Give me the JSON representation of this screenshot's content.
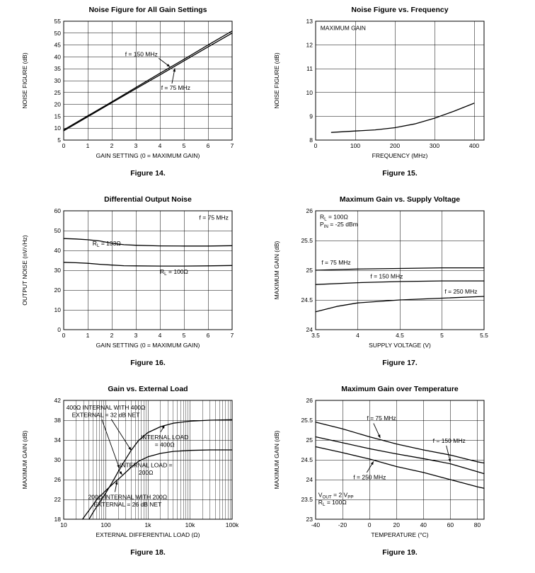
{
  "colors": {
    "ink": "#000000",
    "background": "#ffffff"
  },
  "chart_data": [
    {
      "type": "line",
      "title": "Noise Figure for All Gain Settings",
      "caption": "Figure 14.",
      "xlabel": "GAIN SETTING (0 = MAXIMUM GAIN)",
      "ylabel": "NOISE FIGURE (dB)",
      "xscale": "linear",
      "xlim": [
        0,
        7
      ],
      "ylim": [
        5,
        55
      ],
      "grid": true,
      "legend": "none",
      "xticks": {
        "values": [
          0,
          1,
          2,
          3,
          4,
          5,
          6,
          7
        ],
        "labels": [
          "0",
          "1",
          "2",
          "3",
          "4",
          "5",
          "6",
          "7"
        ]
      },
      "yticks": {
        "values": [
          5,
          10,
          15,
          20,
          25,
          30,
          35,
          40,
          45,
          50,
          55
        ],
        "labels": [
          "5",
          "10",
          "15",
          "20",
          "25",
          "30",
          "35",
          "40",
          "45",
          "50",
          "55"
        ]
      },
      "series": [
        {
          "name": "f = 150 MHz",
          "x": [
            0,
            1,
            2,
            3,
            4,
            5,
            6,
            7
          ],
          "y": [
            9.3,
            15.2,
            21.1,
            27.1,
            33.1,
            39.0,
            45.0,
            50.9
          ]
        },
        {
          "name": "f = 75 MHz",
          "x": [
            0,
            1,
            2,
            3,
            4,
            5,
            6,
            7
          ],
          "y": [
            8.9,
            14.8,
            20.7,
            26.6,
            32.4,
            38.3,
            44.2,
            50.0
          ]
        }
      ],
      "annotations": [
        {
          "lines": [
            "f = 150 MHz"
          ],
          "x": 2.55,
          "y": 41.2,
          "ha": "left",
          "arrows": [
            {
              "from": [
                3.95,
                39.4
              ],
              "to": [
                4.42,
                35.8
              ]
            }
          ]
        },
        {
          "lines": [
            "f = 75 MHz"
          ],
          "x": 4.05,
          "y": 27.0,
          "ha": "left",
          "arrows": [
            {
              "from": [
                4.5,
                28.8
              ],
              "to": [
                4.62,
                35.2
              ]
            }
          ]
        }
      ]
    },
    {
      "type": "line",
      "title": "Noise Figure vs. Frequency",
      "caption": "Figure 15.",
      "xlabel": "FREQUENCY (MHz)",
      "ylabel": "NOISE FIGURE (dB)",
      "xscale": "linear",
      "xlim": [
        0,
        425
      ],
      "ylim": [
        8,
        13
      ],
      "grid": true,
      "legend": "none",
      "xticks": {
        "values": [
          0,
          100,
          200,
          300,
          400
        ],
        "labels": [
          "0",
          "100",
          "200",
          "300",
          "400"
        ]
      },
      "yticks": {
        "values": [
          8,
          9,
          10,
          11,
          12,
          13
        ],
        "labels": [
          "8",
          "9",
          "10",
          "11",
          "12",
          "13"
        ]
      },
      "series": [
        {
          "name": "maximum gain",
          "x": [
            40,
            100,
            150,
            200,
            250,
            300,
            350,
            400
          ],
          "y": [
            8.32,
            8.38,
            8.43,
            8.52,
            8.68,
            8.92,
            9.22,
            9.55
          ]
        }
      ],
      "annotations": [
        {
          "lines": [
            "MAXIMUM GAIN"
          ],
          "x": 12,
          "y": 12.72,
          "ha": "left"
        }
      ]
    },
    {
      "type": "line",
      "title": "Differential Output Noise",
      "caption": "Figure 16.",
      "xlabel": "GAIN SETTING (0 = MAXIMUM GAIN)",
      "ylabel": "OUTPUT NOISE (nV/√Hz)",
      "xscale": "linear",
      "xlim": [
        0,
        7
      ],
      "ylim": [
        0,
        60
      ],
      "grid": true,
      "legend": "none",
      "xticks": {
        "values": [
          0,
          1,
          2,
          3,
          4,
          5,
          6,
          7
        ],
        "labels": [
          "0",
          "1",
          "2",
          "3",
          "4",
          "5",
          "6",
          "7"
        ]
      },
      "yticks": {
        "values": [
          0,
          10,
          20,
          30,
          40,
          50,
          60
        ],
        "labels": [
          "0",
          "10",
          "20",
          "30",
          "40",
          "50",
          "60"
        ]
      },
      "series": [
        {
          "name": "RL = 133 ohm",
          "x": [
            0,
            0.5,
            1,
            1.5,
            2,
            2.5,
            3,
            4,
            5,
            6,
            7
          ],
          "y": [
            46.0,
            45.8,
            45.4,
            44.8,
            43.6,
            42.9,
            42.6,
            42.3,
            42.2,
            42.2,
            42.4
          ]
        },
        {
          "name": "RL = 100 ohm",
          "x": [
            0,
            0.5,
            1,
            1.5,
            2,
            2.5,
            3,
            4,
            5,
            6,
            7
          ],
          "y": [
            34.0,
            33.8,
            33.5,
            33.0,
            32.6,
            32.3,
            32.2,
            32.1,
            32.1,
            32.2,
            32.4
          ]
        }
      ],
      "annotations": [
        {
          "lines": [
            "f = 75 MHz"
          ],
          "x": 6.85,
          "y": 56.6,
          "ha": "right"
        },
        {
          "lines": [
            [
              "R",
              {
                "t": "L",
                "sub": true
              },
              " = 133Ω"
            ]
          ],
          "x": 1.2,
          "y": 43.5,
          "ha": "left"
        },
        {
          "lines": [
            [
              "R",
              {
                "t": "L",
                "sub": true
              },
              " = 100Ω"
            ]
          ],
          "x": 4.0,
          "y": 29.2,
          "ha": "left"
        }
      ]
    },
    {
      "type": "line",
      "title": "Maximum Gain vs. Supply Voltage",
      "caption": "Figure 17.",
      "xlabel": "SUPPLY VOLTAGE (V)",
      "ylabel": "MAXIMUM GAIN (dB)",
      "xscale": "linear",
      "xlim": [
        3.5,
        5.5
      ],
      "ylim": [
        24,
        26
      ],
      "grid": true,
      "legend": "none",
      "xticks": {
        "values": [
          3.5,
          4,
          4.5,
          5,
          5.5
        ],
        "labels": [
          "3.5",
          "4",
          "4.5",
          "5",
          "5.5"
        ]
      },
      "yticks": {
        "values": [
          24,
          24.5,
          25,
          25.5,
          26
        ],
        "labels": [
          "24",
          "24.5",
          "25",
          "25.5",
          "26"
        ]
      },
      "series": [
        {
          "name": "f = 75 MHz",
          "x": [
            3.5,
            4,
            4.5,
            5,
            5.5
          ],
          "y": [
            25.0,
            25.02,
            25.03,
            25.04,
            25.04
          ]
        },
        {
          "name": "f = 150 MHz",
          "x": [
            3.5,
            4,
            4.5,
            5,
            5.5
          ],
          "y": [
            24.76,
            24.79,
            24.81,
            24.82,
            24.82
          ]
        },
        {
          "name": "f = 250 MHz",
          "x": [
            3.5,
            3.75,
            4,
            4.5,
            5,
            5.5
          ],
          "y": [
            24.3,
            24.39,
            24.45,
            24.5,
            24.53,
            24.56
          ]
        }
      ],
      "annotations": [
        {
          "lines": [
            [
              "R",
              {
                "t": "L",
                "sub": true
              },
              " = 100Ω"
            ],
            [
              "P",
              {
                "t": "IN",
                "sub": true
              },
              " = -25 dBm"
            ]
          ],
          "x": 3.55,
          "y": 25.9,
          "ha": "left"
        },
        {
          "lines": [
            "f = 75 MHz"
          ],
          "x": 3.57,
          "y": 25.13,
          "ha": "left"
        },
        {
          "lines": [
            "f = 150 MHz"
          ],
          "x": 4.15,
          "y": 24.9,
          "ha": "left"
        },
        {
          "lines": [
            "f = 250 MHz"
          ],
          "x": 5.42,
          "y": 24.64,
          "ha": "right"
        }
      ]
    },
    {
      "type": "line",
      "title": "Gain vs. External Load",
      "caption": "Figure 18.",
      "xlabel": "EXTERNAL DIFFERENTIAL LOAD (Ω)",
      "ylabel": "MAXIMUM GAIN (dB)",
      "xscale": "log",
      "xlim": [
        10,
        100000
      ],
      "ylim": [
        18,
        42
      ],
      "grid": true,
      "minor_grid": true,
      "legend": "none",
      "xticks": {
        "values": [
          10,
          100,
          1000,
          10000,
          100000
        ],
        "labels": [
          "10",
          "100",
          "1k",
          "10k",
          "100k"
        ]
      },
      "yticks": {
        "values": [
          18,
          22,
          26,
          30,
          34,
          38,
          42
        ],
        "labels": [
          "18",
          "22",
          "26",
          "30",
          "34",
          "38",
          "42"
        ]
      },
      "series": [
        {
          "name": "internal load = 400 ohm",
          "x": [
            40,
            50,
            70,
            100,
            150,
            200,
            300,
            400,
            600,
            1000,
            2000,
            4000,
            10000,
            30000,
            100000
          ],
          "y": [
            18,
            19.4,
            21.3,
            23.3,
            25.8,
            27.7,
            30.2,
            31.9,
            33.9,
            35.5,
            36.7,
            37.4,
            37.8,
            38,
            38.1
          ]
        },
        {
          "name": "internal load = 200 ohm",
          "x": [
            28,
            40,
            60,
            100,
            150,
            200,
            300,
            400,
            600,
            1000,
            2000,
            4000,
            10000,
            30000,
            100000
          ],
          "y": [
            18,
            19.8,
            21.9,
            23.8,
            25.2,
            26.1,
            27.5,
            28.5,
            29.7,
            30.6,
            31.3,
            31.7,
            31.9,
            32,
            32
          ]
        }
      ],
      "annotations": [
        {
          "lines": [
            "400Ω INTERNAL WITH 400Ω",
            "EXTERNAL = 32 dB NET"
          ],
          "x": 100,
          "y": 40.6,
          "ha": "center",
          "arrows": [
            {
              "from": [
                80,
                38.2
              ],
              "to": [
                210,
                28.3
              ]
            },
            {
              "from": [
                135,
                38.2
              ],
              "to": [
                400,
                31.9
              ]
            }
          ]
        },
        {
          "lines": [
            "INTERNAL LOAD",
            "= 400Ω"
          ],
          "x": 2500,
          "y": 34.6,
          "ha": "center",
          "arrows": [
            {
              "from": [
                2000,
                35.6
              ],
              "to": [
                2500,
                37.0
              ]
            }
          ]
        },
        {
          "lines": [
            "INTERNAL LOAD =",
            "200Ω"
          ],
          "x": 900,
          "y": 28.9,
          "ha": "center",
          "arrows": [
            {
              "from": [
                200,
                28.0
              ],
              "to": [
                245,
                27.0
              ]
            }
          ]
        },
        {
          "lines": [
            "200Ω INTERNAL WITH 200Ω",
            "EXTERNAL = 26 dB NET"
          ],
          "x": 330,
          "y": 22.5,
          "ha": "center",
          "arrows": [
            {
              "from": [
                165,
                23.5
              ],
              "to": [
                185,
                25.7
              ]
            }
          ]
        }
      ]
    },
    {
      "type": "line",
      "title": "Maximum Gain over Temperature",
      "caption": "Figure 19.",
      "xlabel": "TEMPERATURE (°C)",
      "ylabel": "MAXIMUM GAIN (dB)",
      "xscale": "linear",
      "xlim": [
        -40,
        85
      ],
      "ylim": [
        23,
        26
      ],
      "grid": true,
      "legend": "none",
      "xticks": {
        "values": [
          -40,
          -20,
          0,
          20,
          40,
          60,
          80
        ],
        "labels": [
          "-40",
          "-20",
          "0",
          "20",
          "40",
          "60",
          "80"
        ]
      },
      "yticks": {
        "values": [
          23,
          23.5,
          24,
          24.5,
          25,
          25.5,
          26
        ],
        "labels": [
          "23",
          "23.5",
          "24",
          "24.5",
          "25",
          "25.5",
          "26"
        ]
      },
      "series": [
        {
          "name": "f = 75 MHz",
          "x": [
            -40,
            -20,
            0,
            20,
            40,
            60,
            80,
            85
          ],
          "y": [
            25.45,
            25.28,
            25.08,
            24.9,
            24.75,
            24.62,
            24.45,
            24.42
          ]
        },
        {
          "name": "f = 150 MHz",
          "x": [
            -40,
            -20,
            0,
            20,
            40,
            60,
            80,
            85
          ],
          "y": [
            25.08,
            24.93,
            24.78,
            24.65,
            24.53,
            24.4,
            24.2,
            24.15
          ]
        },
        {
          "name": "f = 250 MHz",
          "x": [
            -40,
            -20,
            0,
            20,
            40,
            60,
            80,
            85
          ],
          "y": [
            24.83,
            24.68,
            24.52,
            24.33,
            24.18,
            24.0,
            23.82,
            23.78
          ]
        }
      ],
      "annotations": [
        {
          "lines": [
            "f = 75 MHz"
          ],
          "x": -2,
          "y": 25.55,
          "ha": "left",
          "arrows": [
            {
              "from": [
                3,
                25.42
              ],
              "to": [
                8,
                25.05
              ]
            }
          ]
        },
        {
          "lines": [
            "f = 150 MHz"
          ],
          "x": 47,
          "y": 24.98,
          "ha": "left",
          "arrows": [
            {
              "from": [
                57,
                24.86
              ],
              "to": [
                60,
                24.44
              ]
            }
          ]
        },
        {
          "lines": [
            "f = 250 MHz"
          ],
          "x": -12,
          "y": 24.06,
          "ha": "left",
          "arrows": [
            {
              "from": [
                -2,
                24.18
              ],
              "to": [
                3,
                24.46
              ]
            }
          ]
        },
        {
          "lines": [
            [
              "V",
              {
                "t": "OUT",
                "sub": true
              },
              " = 2 V",
              {
                "t": "PP",
                "sub": true
              }
            ],
            [
              "R",
              {
                "t": "L",
                "sub": true
              },
              " = 100Ω"
            ]
          ],
          "x": -38,
          "y": 23.62,
          "ha": "left"
        }
      ]
    }
  ]
}
